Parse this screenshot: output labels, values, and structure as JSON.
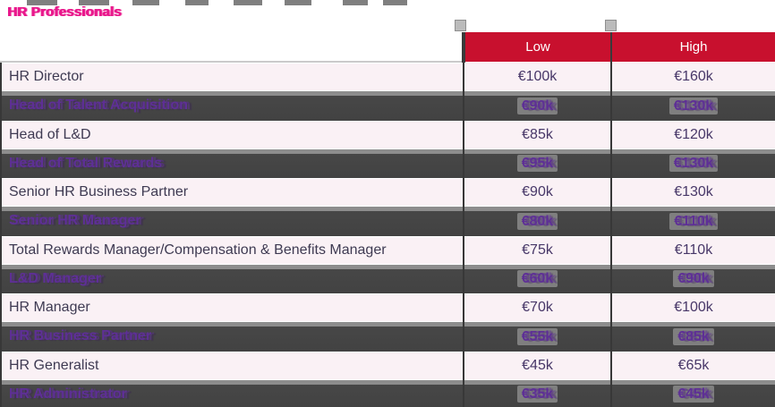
{
  "page": {
    "title": "HR Professionals"
  },
  "table": {
    "columns": {
      "low": "Low",
      "high": "High"
    },
    "rows": [
      {
        "role": "HR Director",
        "low": "€100k",
        "high": "€160k"
      },
      {
        "role": "Head of Talent Acquisition",
        "low": "€90k",
        "high": "€130k"
      },
      {
        "role": "Head of L&D",
        "low": "€85k",
        "high": "€120k"
      },
      {
        "role": "Head of Total Rewards",
        "low": "€95k",
        "high": "€130k"
      },
      {
        "role": "Senior HR Business Partner",
        "low": "€90k",
        "high": "€130k"
      },
      {
        "role": "Senior HR Manager",
        "low": "€80k",
        "high": "€110k"
      },
      {
        "role": "Total Rewards Manager/Compensation & Benefits Manager",
        "low": "€75k",
        "high": "€110k"
      },
      {
        "role": "L&D Manager",
        "low": "€60k",
        "high": "€90k"
      },
      {
        "role": "HR Manager",
        "low": "€70k",
        "high": "€100k"
      },
      {
        "role": "HR Business Partner",
        "low": "€55k",
        "high": "€85k"
      },
      {
        "role": "HR Generalist",
        "low": "€45k",
        "high": "€65k"
      },
      {
        "role": "HR Administrator",
        "low": "€35k",
        "high": "€45k"
      }
    ]
  },
  "colors": {
    "title": "#E9188C",
    "header_bg": "#C8102E",
    "header_text": "#FFFFFF",
    "row_light_bg": "#FAF1F5",
    "row_dark_bg": "#474747",
    "row_dark_strip": "#8D8D8D",
    "role_text": "#3E3A52",
    "value_text": "#473768",
    "dark_row_text": "#5E2F96",
    "grid_border": "#383838"
  }
}
